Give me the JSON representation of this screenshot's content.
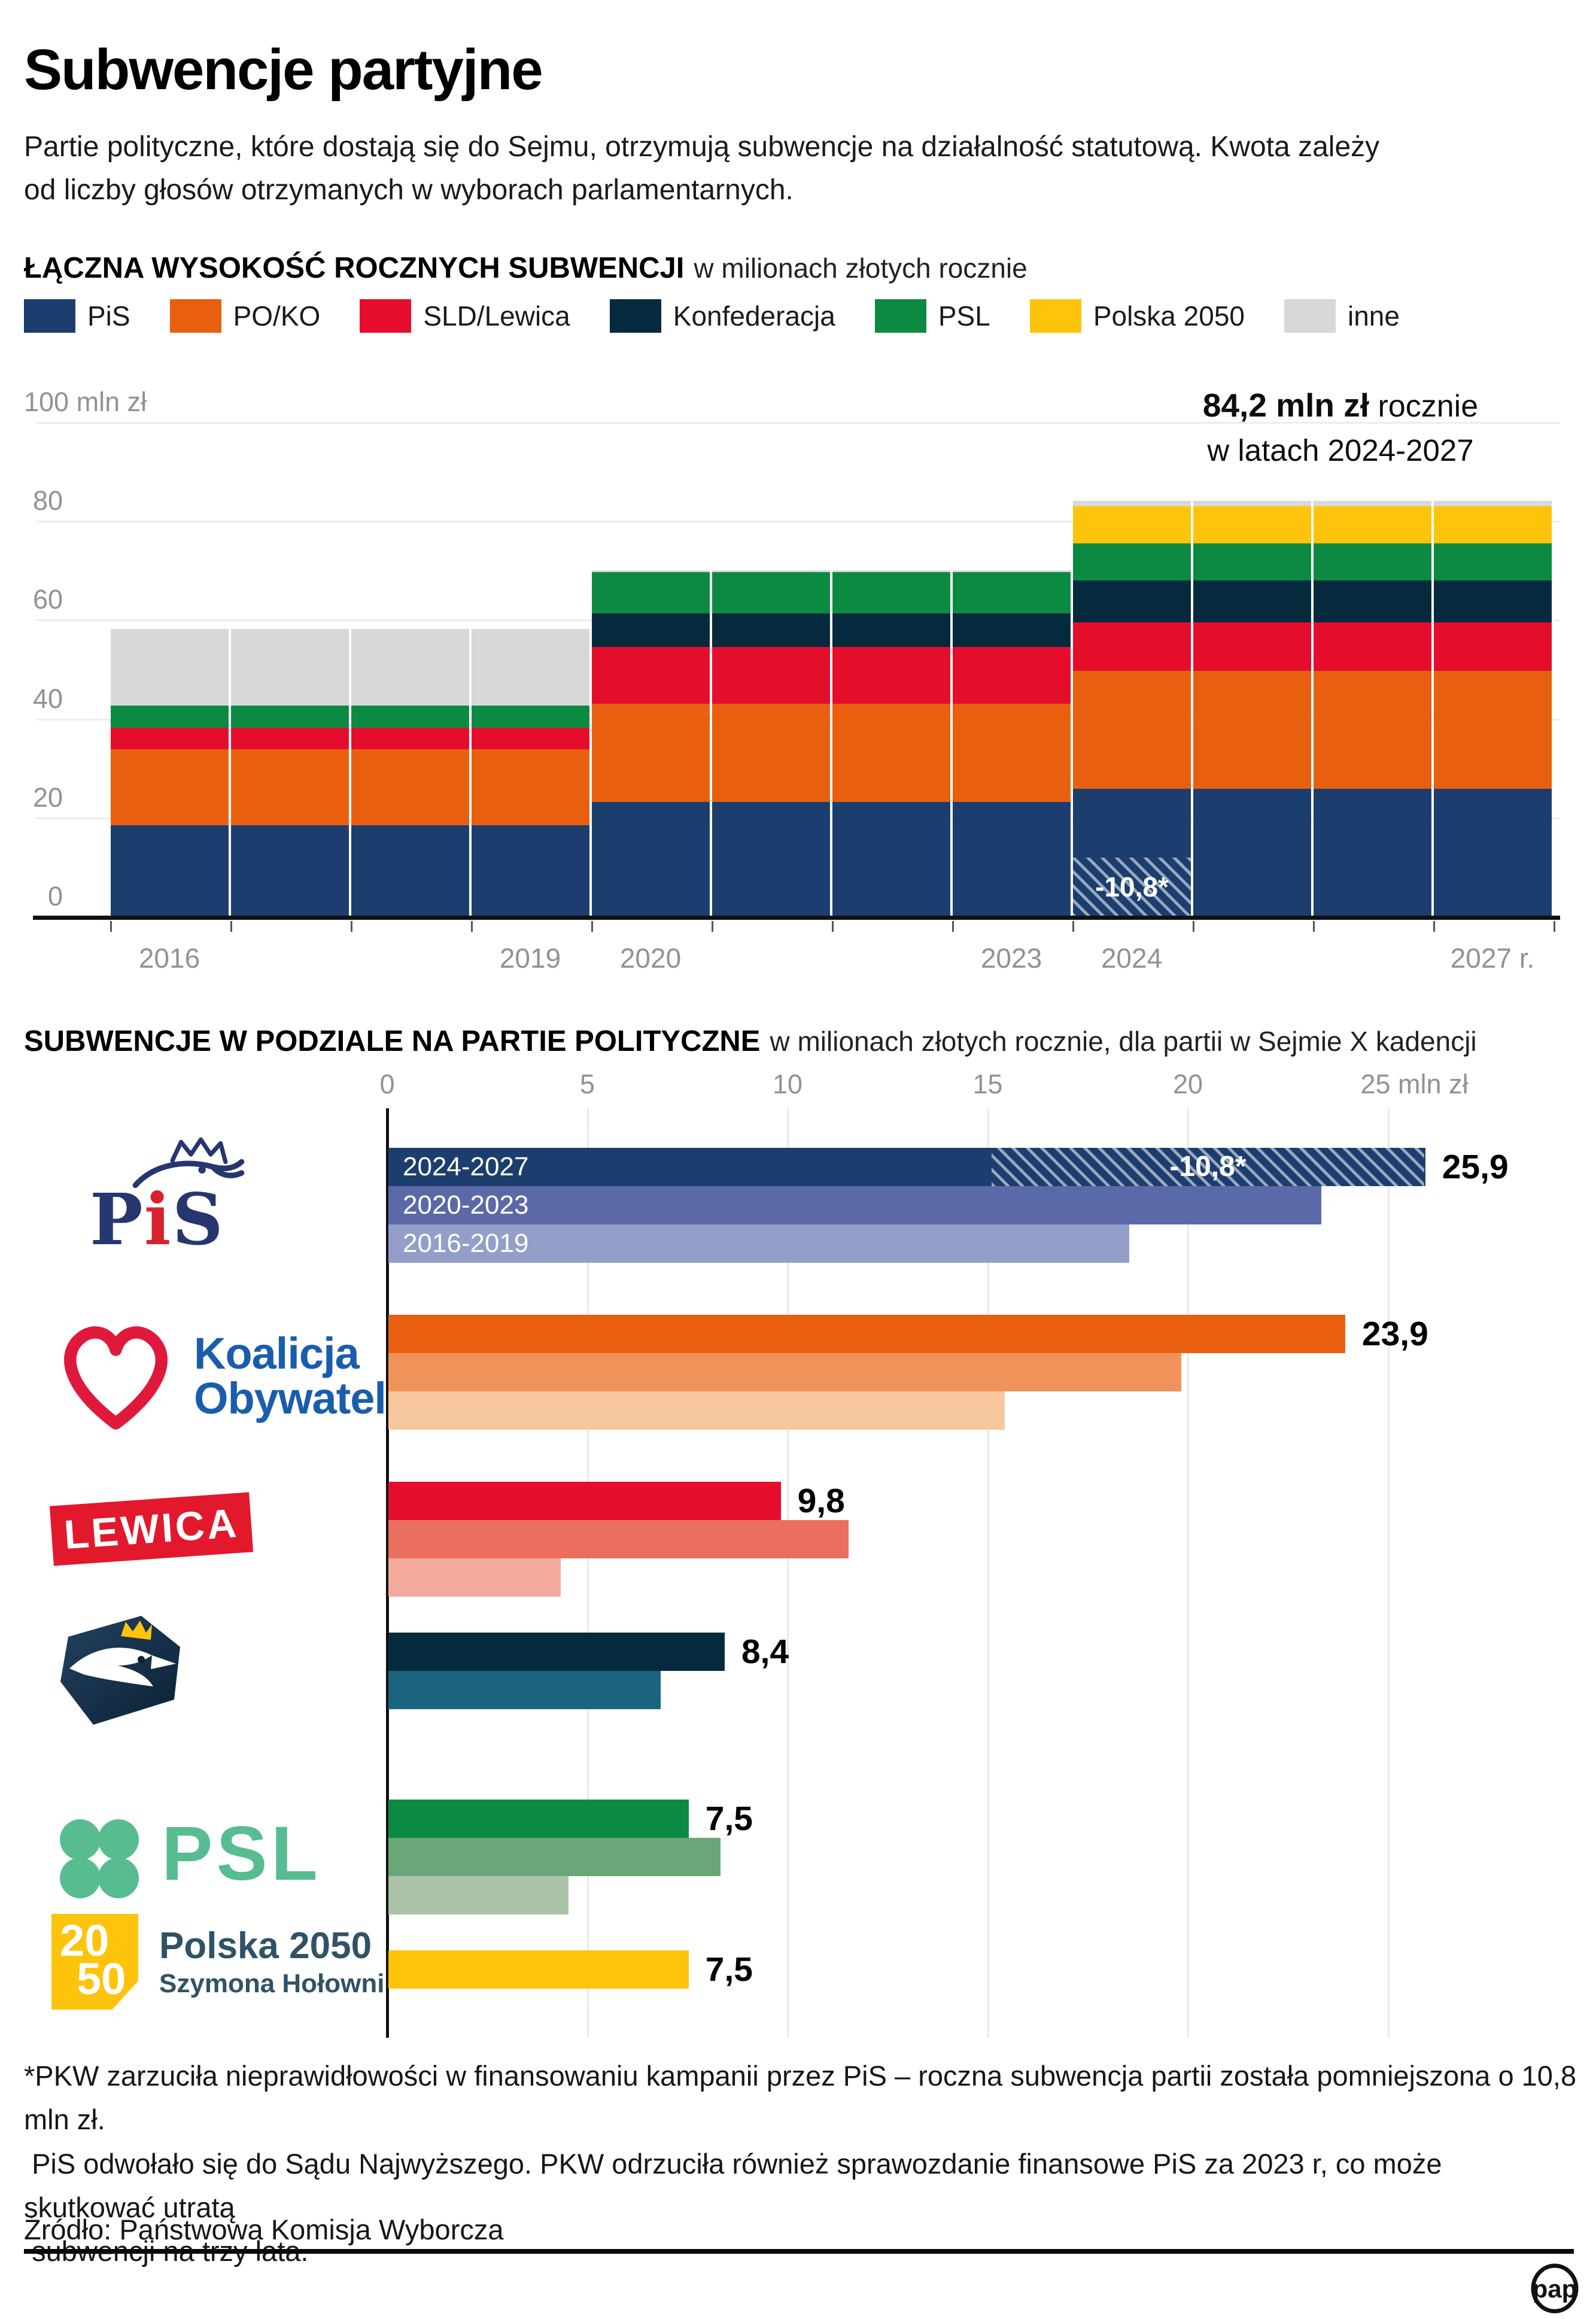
{
  "title": "Subwencje partyjne",
  "intro": "Partie polityczne, które dostają się do Sejmu, otrzymują subwencje na działalność statutową. Kwota zależy\nod liczby głosów otrzymanych w wyborach parlamentarnych.",
  "section1": {
    "title": "ŁĄCZNA WYSOKOŚĆ ROCZNYCH SUBWENCJI",
    "note": "w milionach złotych rocznie"
  },
  "section2": {
    "title": "SUBWENCJE W PODZIALE NA PARTIE POLITYCZNE",
    "note": "w milionach złotych rocznie, dla partii w Sejmie X kadencji"
  },
  "chart_data": [
    {
      "type": "bar",
      "stacked": true,
      "title": "ŁĄCZNA WYSOKOŚĆ ROCZNYCH SUBWENCJI",
      "subtitle": "w milionach złotych rocznie",
      "categories": [
        "2016-2019",
        "2020-2023",
        "2024-2027"
      ],
      "years_per_category": 4,
      "series": [
        {
          "name": "PiS",
          "color": "#1c3e6e",
          "values": [
            18.5,
            23.3,
            25.9
          ]
        },
        {
          "name": "PO/KO",
          "color": "#e8600f",
          "values": [
            15.4,
            19.8,
            23.9
          ]
        },
        {
          "name": "SLD/Lewica",
          "color": "#e40e2c",
          "values": [
            4.3,
            11.5,
            9.8
          ]
        },
        {
          "name": "Konfederacja",
          "color": "#052a3d",
          "values": [
            0,
            6.8,
            8.4
          ]
        },
        {
          "name": "PSL",
          "color": "#0d8a42",
          "values": [
            4.5,
            8.3,
            7.5
          ]
        },
        {
          "name": "Polska 2050",
          "color": "#fdc40b",
          "values": [
            0,
            0,
            7.5
          ]
        },
        {
          "name": "inne",
          "color": "#d8d8d8",
          "values": [
            15.5,
            0.4,
            1.2
          ]
        }
      ],
      "totals": [
        58.2,
        70.1,
        84.2
      ],
      "ylim": [
        0,
        100
      ],
      "grid": true,
      "y_ticks": [
        "100 mln zł",
        "80",
        "60",
        "40",
        "20",
        "0"
      ],
      "x_tick_labels": [
        "2016",
        "2019",
        "2020",
        "2023",
        "2024",
        "2027 r."
      ],
      "annotation": {
        "bold": "84,2 mln zł",
        "rest": "rocznie",
        "line2": "w latach 2024-2027"
      },
      "reduction": {
        "label": "-10,8*",
        "value": 10.8,
        "applies_to": "PiS 2024"
      }
    },
    {
      "type": "bar",
      "orientation": "horizontal",
      "title": "SUBWENCJE W PODZIALE NA PARTIE POLITYCZNE",
      "subtitle": "w milionach złotych rocznie, dla partii w Sejmie X kadencji",
      "x_ticks": [
        "0",
        "5",
        "10",
        "15",
        "20",
        "25 mln zł"
      ],
      "xlim": [
        0,
        30
      ],
      "grid": true,
      "legend_position": "inside-first-bars",
      "period_labels": [
        "2024-2027",
        "2020-2023",
        "2016-2019"
      ],
      "parties": [
        {
          "name": "PiS",
          "show_periods": true,
          "colors": [
            "#1c3e6e",
            "#5b69a8",
            "#939fc9"
          ],
          "values": [
            25.9,
            23.3,
            18.5
          ],
          "value_label": "25,9",
          "hatch": {
            "from": 15.1,
            "to": 25.9,
            "label": "-10,8*"
          }
        },
        {
          "name": "Koalicja Obywatelska",
          "colors": [
            "#e8600f",
            "#f0935b",
            "#f7c79d"
          ],
          "values": [
            23.9,
            19.8,
            15.4
          ],
          "value_label": "23,9"
        },
        {
          "name": "Lewica",
          "colors": [
            "#e40e2c",
            "#ea6f5e",
            "#f3aa9d"
          ],
          "values": [
            9.8,
            11.5,
            4.3
          ],
          "value_label": "9,8"
        },
        {
          "name": "Konfederacja",
          "colors": [
            "#052a3d",
            "#1a6480",
            null
          ],
          "values": [
            8.4,
            6.8,
            null
          ],
          "value_label": "8,4"
        },
        {
          "name": "PSL",
          "colors": [
            "#0d8a42",
            "#6ba678",
            "#abc3a9"
          ],
          "values": [
            7.5,
            8.3,
            4.5
          ],
          "value_label": "7,5"
        },
        {
          "name": "Polska 2050",
          "colors": [
            "#fdc40b",
            null,
            null
          ],
          "values": [
            7.5,
            null,
            null
          ],
          "value_label": "7,5"
        }
      ]
    }
  ],
  "logos": {
    "pis": {
      "p": "P",
      "i": "i",
      "s": "S"
    },
    "ko": {
      "line1": "Koalicja",
      "line2": "Obywatelska"
    },
    "lewica": "LEWICA",
    "psl": "PSL",
    "p2050": {
      "sq1": "20",
      "sq2": "50",
      "line1": "Polska 2050",
      "line2": "Szymona Hołowni"
    }
  },
  "footnote": "*PKW zarzuciła nieprawidłowości w finansowaniu kampanii przez PiS – roczna subwencja partii została pomniejszona o 10,8 mln zł.\n PiS odwołało się do Sądu Najwyższego. PKW odrzuciła również sprawozdanie finansowe PiS za 2023 r, co może skutkować utratą\n subwencji na trzy lata.",
  "source": "Źródło: Państwowa Komisja Wyborcza",
  "brand": "pap"
}
